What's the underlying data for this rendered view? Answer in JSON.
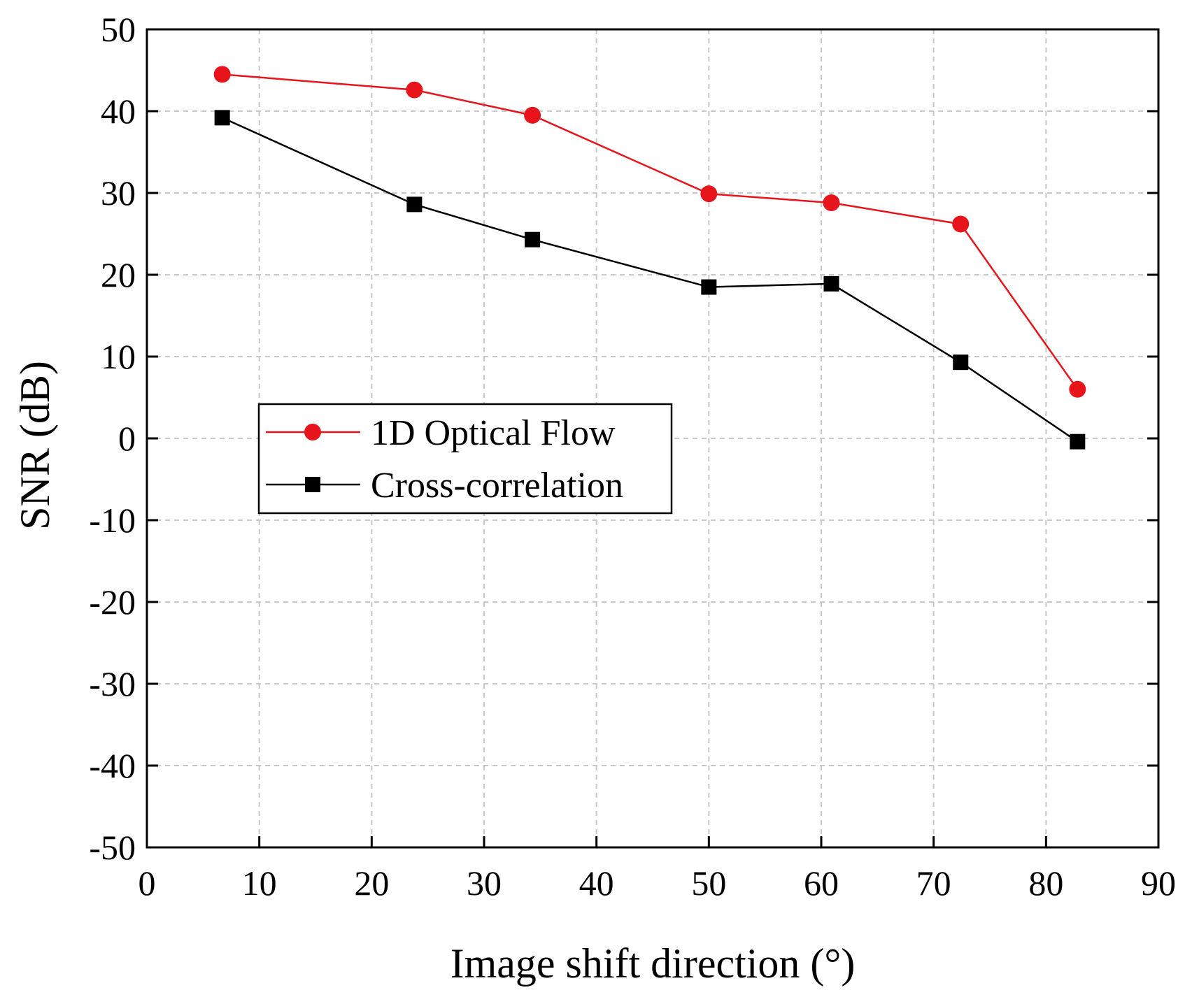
{
  "chart_data": {
    "type": "line",
    "title": "",
    "xlabel": "Image shift direction (°)",
    "ylabel": "SNR (dB)",
    "xlim": [
      0,
      90
    ],
    "ylim": [
      -50,
      50
    ],
    "x_ticks": [
      0,
      10,
      20,
      30,
      40,
      50,
      60,
      70,
      80,
      90
    ],
    "y_ticks": [
      -50,
      -40,
      -30,
      -20,
      -10,
      0,
      10,
      20,
      30,
      40,
      50
    ],
    "grid": true,
    "legend_position": "left-center",
    "series": [
      {
        "name": "1D Optical Flow",
        "color": "#e8141c",
        "marker": "circle",
        "x": [
          6.7,
          23.8,
          34.3,
          50,
          60.9,
          72.4,
          82.8
        ],
        "y": [
          44.5,
          42.6,
          39.5,
          29.9,
          28.8,
          26.2,
          6.0
        ]
      },
      {
        "name": "Cross-correlation",
        "color": "#000000",
        "marker": "square",
        "x": [
          6.7,
          23.8,
          34.3,
          50,
          60.9,
          72.4,
          82.8
        ],
        "y": [
          39.2,
          28.6,
          24.3,
          18.5,
          18.9,
          9.3,
          -0.4
        ]
      }
    ]
  }
}
